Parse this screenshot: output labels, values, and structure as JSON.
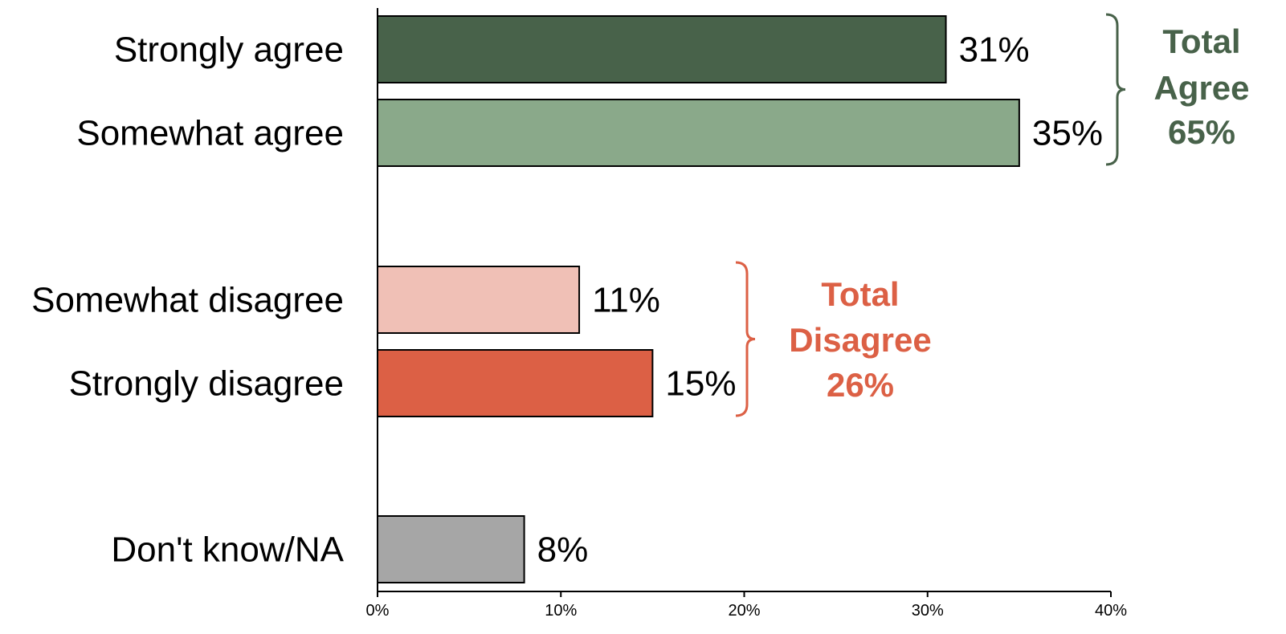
{
  "chart_data": {
    "type": "bar",
    "orientation": "horizontal",
    "categories": [
      "Strongly agree",
      "Somewhat agree",
      "Somewhat disagree",
      "Strongly disagree",
      "Don't know/NA"
    ],
    "values": [
      31,
      35,
      11,
      15,
      8
    ],
    "value_labels": [
      "31%",
      "35%",
      "11%",
      "15%",
      "8%"
    ],
    "colors": [
      "#48624a",
      "#8aa98a",
      "#f0c0b6",
      "#dc6045",
      "#a6a6a6"
    ],
    "xlim": [
      0,
      40
    ],
    "xticks": [
      0,
      10,
      20,
      30,
      40
    ],
    "xtick_labels": [
      "0%",
      "10%",
      "20%",
      "30%",
      "40%"
    ],
    "grid": false,
    "groups": [
      {
        "lines": [
          "Total",
          "Agree",
          "65%"
        ],
        "color": "#48624a",
        "categories": [
          "Strongly agree",
          "Somewhat agree"
        ]
      },
      {
        "lines": [
          "Total",
          "Disagree",
          "26%"
        ],
        "color": "#dc6045",
        "categories": [
          "Somewhat disagree",
          "Strongly disagree"
        ]
      }
    ]
  }
}
